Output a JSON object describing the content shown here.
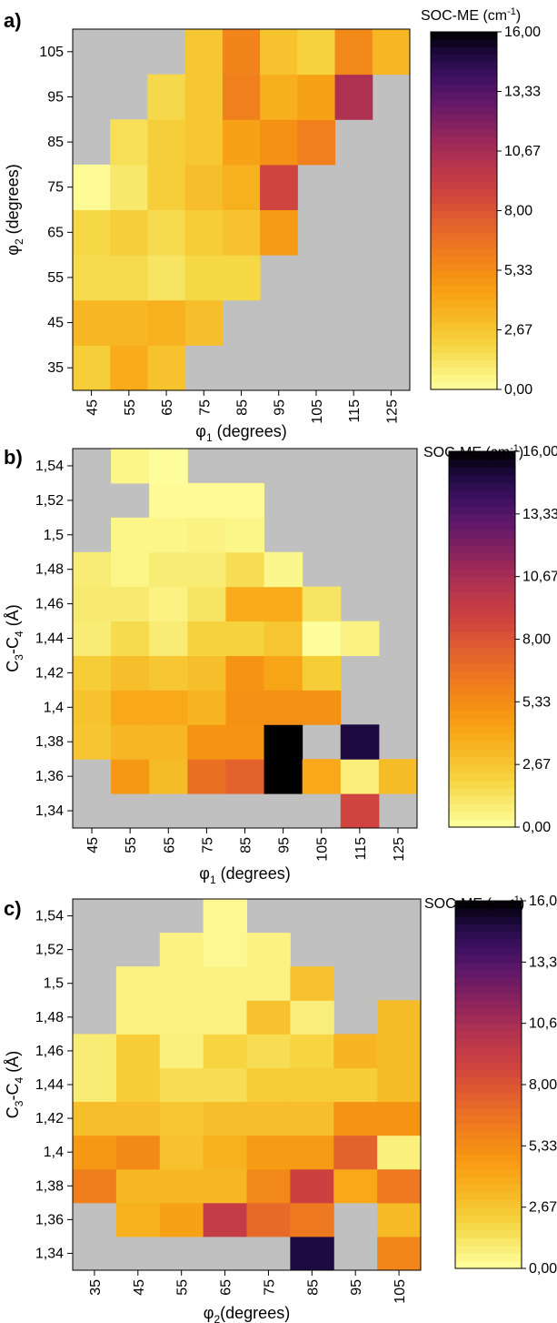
{
  "colors": {
    "missing": "#c0c0c0",
    "scale": [
      "#ffffa0",
      "#f8ea70",
      "#f6d540",
      "#f6be2a",
      "#f8a818",
      "#f59412",
      "#f0801c",
      "#e86a28",
      "#dc5434",
      "#cc4040",
      "#b8354c",
      "#9e2a58",
      "#7e2060",
      "#5e1868",
      "#3e1060",
      "#1e0a40",
      "#000000"
    ]
  },
  "colorbar": {
    "title_main": "SOC-ME (cm",
    "title_sup": "-1",
    "title_end": ")",
    "ticks": [
      "0,00",
      "2,67",
      "5,33",
      "8,00",
      "10,67",
      "13,33",
      "16,00"
    ]
  },
  "chart_data": [
    {
      "type": "heatmap",
      "panel": "a)",
      "xlabel": "φ1 (degrees)",
      "xlabel_main": "φ",
      "xlabel_sub": "1",
      "xlabel_rest": " (degrees)",
      "ylabel_main": "φ",
      "ylabel_sub": "2",
      "ylabel_rest": " (degrees)",
      "x": [
        45,
        55,
        65,
        75,
        85,
        95,
        105,
        115,
        125
      ],
      "y": [
        35,
        45,
        55,
        65,
        75,
        85,
        95,
        105
      ],
      "x_ticks": [
        "45",
        "55",
        "65",
        "75",
        "85",
        "95",
        "105",
        "115",
        "125"
      ],
      "y_ticks": [
        "35",
        "45",
        "55",
        "65",
        "75",
        "85",
        "95",
        "105"
      ],
      "zlim": [
        0,
        16
      ],
      "values": [
        [
          2.3,
          3.8,
          2.8,
          null,
          null,
          null,
          null,
          null,
          null
        ],
        [
          3.3,
          3.3,
          3.6,
          3.0,
          null,
          null,
          null,
          null,
          null
        ],
        [
          1.7,
          1.7,
          1.3,
          1.9,
          1.9,
          null,
          null,
          null,
          null
        ],
        [
          1.9,
          2.3,
          1.7,
          2.4,
          2.8,
          4.6,
          null,
          null,
          null
        ],
        [
          0.2,
          1.1,
          2.3,
          3.0,
          3.6,
          8.8,
          null,
          null,
          null
        ],
        [
          null,
          1.5,
          2.3,
          2.6,
          4.3,
          5.2,
          6.0,
          null,
          null
        ],
        [
          null,
          null,
          1.8,
          2.6,
          6.0,
          3.7,
          4.3,
          10.4,
          null
        ],
        [
          null,
          null,
          null,
          2.6,
          5.8,
          2.8,
          2.1,
          5.6,
          3.3
        ]
      ]
    },
    {
      "type": "heatmap",
      "panel": "b)",
      "xlabel": "φ1 (degrees)",
      "xlabel_main": "φ",
      "xlabel_sub": "1",
      "xlabel_rest": " (degrees)",
      "ylabel_main": "C",
      "ylabel_sub": "3",
      "ylabel_mid": "-C",
      "ylabel_sub2": "4",
      "ylabel_rest": " (Å)",
      "x": [
        45,
        55,
        65,
        75,
        85,
        95,
        105,
        115,
        125
      ],
      "y": [
        1.34,
        1.36,
        1.38,
        1.4,
        1.42,
        1.44,
        1.46,
        1.48,
        1.5,
        1.52,
        1.54
      ],
      "x_ticks": [
        "45",
        "55",
        "65",
        "75",
        "85",
        "95",
        "105",
        "115",
        "125"
      ],
      "y_ticks": [
        "1,34",
        "1,36",
        "1,38",
        "1,4",
        "1,42",
        "1,44",
        "1,46",
        "1,48",
        "1,5",
        "1,52",
        "1,54"
      ],
      "zlim": [
        0,
        16
      ],
      "values": [
        [
          null,
          null,
          null,
          null,
          null,
          null,
          null,
          8.8,
          null
        ],
        [
          null,
          4.8,
          3.1,
          6.7,
          7.3,
          16.0,
          4.0,
          0.8,
          3.1
        ],
        [
          2.7,
          3.3,
          3.3,
          5.0,
          5.0,
          16.0,
          null,
          15.0,
          null
        ],
        [
          2.8,
          4.0,
          4.0,
          3.5,
          5.2,
          5.2,
          5.2,
          null,
          null
        ],
        [
          2.4,
          3.0,
          2.6,
          3.0,
          5.0,
          4.2,
          2.4,
          null,
          null
        ],
        [
          0.9,
          1.7,
          0.9,
          2.1,
          2.1,
          2.6,
          0.1,
          0.6,
          null
        ],
        [
          1.0,
          1.0,
          0.6,
          1.3,
          3.8,
          3.8,
          1.3,
          null,
          null
        ],
        [
          0.9,
          0.5,
          0.9,
          0.9,
          1.6,
          0.4,
          null,
          null,
          null
        ],
        [
          null,
          0.5,
          0.5,
          0.6,
          0.5,
          null,
          null,
          null,
          null
        ],
        [
          null,
          null,
          0.2,
          0.2,
          0.2,
          null,
          null,
          null,
          null
        ],
        [
          null,
          0.5,
          0.1,
          null,
          null,
          null,
          null,
          null,
          null
        ]
      ]
    },
    {
      "type": "heatmap",
      "panel": "c)",
      "xlabel": "φ2(degrees)",
      "xlabel_main": "φ",
      "xlabel_sub": "2",
      "xlabel_rest": "(degrees)",
      "ylabel_main": "C",
      "ylabel_sub": "3",
      "ylabel_mid": "-C",
      "ylabel_sub2": "4",
      "ylabel_rest": " (Å)",
      "x": [
        35,
        45,
        55,
        65,
        75,
        85,
        95,
        105
      ],
      "y": [
        1.34,
        1.36,
        1.38,
        1.4,
        1.42,
        1.44,
        1.46,
        1.48,
        1.5,
        1.52,
        1.54
      ],
      "x_ticks": [
        "35",
        "45",
        "55",
        "65",
        "75",
        "85",
        "95",
        "105"
      ],
      "y_ticks": [
        "1,34",
        "1,36",
        "1,38",
        "1,4",
        "1,42",
        "1,44",
        "1,46",
        "1,48",
        "1,5",
        "1,52",
        "1,54"
      ],
      "zlim": [
        0,
        16
      ],
      "values": [
        [
          null,
          null,
          null,
          null,
          null,
          15.0,
          null,
          5.7
        ],
        [
          null,
          3.6,
          4.3,
          9.4,
          7.0,
          6.3,
          null,
          3.2
        ],
        [
          6.1,
          3.3,
          3.3,
          3.3,
          5.6,
          9.0,
          4.0,
          6.3
        ],
        [
          4.8,
          5.5,
          2.8,
          3.6,
          4.6,
          4.6,
          7.3,
          0.7
        ],
        [
          3.0,
          3.0,
          2.6,
          3.0,
          3.0,
          3.0,
          5.0,
          5.0
        ],
        [
          0.9,
          2.4,
          1.6,
          1.6,
          2.4,
          2.4,
          2.4,
          3.1
        ],
        [
          0.9,
          2.4,
          0.7,
          2.0,
          1.6,
          2.0,
          3.4,
          3.1
        ],
        [
          null,
          0.6,
          0.6,
          0.6,
          2.8,
          0.8,
          null,
          3.1
        ],
        [
          null,
          0.6,
          0.6,
          0.6,
          0.6,
          2.8,
          null,
          null
        ],
        [
          null,
          null,
          0.6,
          0.3,
          0.6,
          null,
          null,
          null
        ],
        [
          null,
          null,
          null,
          0.3,
          null,
          null,
          null,
          null
        ]
      ]
    }
  ]
}
